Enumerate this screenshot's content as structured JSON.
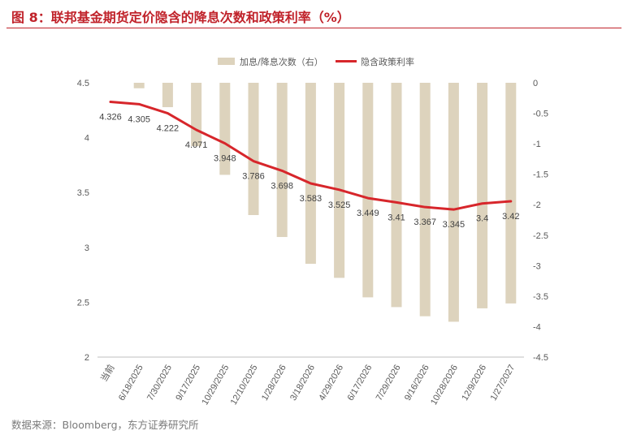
{
  "title": "图 8：联邦基金期货定价隐含的降息次数和政策利率（%）",
  "source": "数据来源：Bloomberg，东方证券研究所",
  "colors": {
    "accent": "#c0222a",
    "bar": "#ddd3bd",
    "line": "#d7262b"
  },
  "chart_data": {
    "type": "bar+line",
    "categories": [
      "当前",
      "6/18/2025",
      "7/30/2025",
      "9/17/2025",
      "10/29/2025",
      "12/10/2025",
      "1/28/2026",
      "3/18/2026",
      "4/29/2026",
      "6/17/2026",
      "7/29/2026",
      "9/16/2026",
      "10/28/2026",
      "12/9/2026",
      "1/27/2027"
    ],
    "legend": {
      "position": "top",
      "bar_label": "加息/降息次数（右）",
      "line_label": "隐含政策利率"
    },
    "bar_series": {
      "name": "加息/降息次数（右）",
      "axis": "right",
      "values": [
        null,
        -0.09,
        -0.4,
        -1.04,
        -1.51,
        -2.17,
        -2.53,
        -2.97,
        -3.2,
        -3.52,
        -3.68,
        -3.83,
        -3.92,
        -3.7,
        -3.62
      ]
    },
    "line_series": {
      "name": "隐含政策利率",
      "axis": "left",
      "values": [
        4.326,
        4.305,
        4.222,
        4.071,
        3.948,
        3.786,
        3.698,
        3.583,
        3.525,
        3.449,
        3.41,
        3.367,
        3.345,
        3.4,
        3.42
      ],
      "labels": [
        "4.326",
        "4.305",
        "4.222",
        "4.071",
        "3.948",
        "3.786",
        "3.698",
        "3.583",
        "3.525",
        "3.449",
        "3.41",
        "3.367",
        "3.345",
        "3.4",
        "3.42"
      ]
    },
    "left_axis": {
      "min": 2,
      "max": 4.5,
      "step": 0.5,
      "ticks": [
        "2",
        "2.5",
        "3",
        "3.5",
        "4",
        "4.5"
      ]
    },
    "right_axis": {
      "min": -4.5,
      "max": 0,
      "step": 0.5,
      "ticks": [
        "-4.5",
        "-4",
        "-3.5",
        "-3",
        "-2.5",
        "-2",
        "-1.5",
        "-1",
        "-0.5",
        "0"
      ]
    },
    "grid": false
  }
}
